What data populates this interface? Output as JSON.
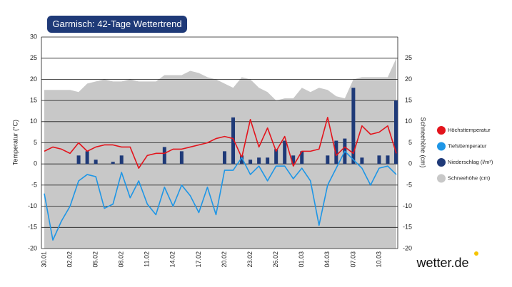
{
  "chart_data": {
    "type": "combo",
    "title": "Garmisch: 42-Tage Wettertrend",
    "ylabel": "Temperatur (°C)",
    "y2label": "Schneehöhe (cm)",
    "logo": "wetter.de",
    "categories": [
      "30.01",
      null,
      null,
      "02.02",
      null,
      null,
      "05.02",
      null,
      null,
      "08.02",
      null,
      null,
      "11.02",
      null,
      null,
      "14.02",
      null,
      null,
      "17.02",
      null,
      null,
      "20.02",
      null,
      null,
      "23.02",
      null,
      null,
      "26.02",
      null,
      null,
      "01.03",
      null,
      null,
      "04.03",
      null,
      null,
      "07.03",
      null,
      null,
      "10.03",
      null,
      null
    ],
    "series": [
      {
        "name": "Höchsttemperatur",
        "type": "line",
        "color": "#e3141c",
        "values": [
          3,
          4,
          3.5,
          2.5,
          5,
          3,
          4,
          4.5,
          4.5,
          4,
          4,
          -1,
          2,
          2.5,
          2.5,
          3.5,
          3.5,
          4,
          4.5,
          5,
          6,
          6.5,
          6,
          1.5,
          10.5,
          4,
          8.5,
          3,
          6.5,
          -0.5,
          3,
          3,
          3.5,
          11,
          2,
          4,
          2.5,
          9,
          7,
          7.5,
          9,
          2.5
        ]
      },
      {
        "name": "Tiefsttemperatur",
        "type": "line",
        "color": "#1e96e6",
        "values": [
          -7,
          -18,
          -13.5,
          -10,
          -4,
          -2.5,
          -3,
          -10.5,
          -9.5,
          -2,
          -8,
          -4,
          -9.5,
          -12,
          -5.5,
          -10,
          -5,
          -7.5,
          -11.5,
          -5.5,
          -12,
          -1.5,
          -1.5,
          1.5,
          -2.5,
          -0.5,
          -4,
          -0.5,
          -0.5,
          -3.5,
          -1,
          -4,
          -14.5,
          -5,
          -1,
          3,
          1,
          -1,
          -5,
          -1,
          -0.5,
          -2.5
        ]
      },
      {
        "name": "Niederschlag (l/m²)",
        "type": "bar",
        "axis": "y2",
        "color": "#1f3a78",
        "values": [
          0,
          0,
          0,
          0,
          2,
          3,
          1,
          0,
          0.5,
          2,
          0,
          0,
          0,
          0,
          4,
          0,
          3,
          0,
          0,
          0,
          0,
          3,
          11,
          2,
          1,
          1.5,
          1.5,
          3.5,
          5.5,
          2,
          3,
          0,
          0,
          2,
          5.5,
          6,
          18,
          1.5,
          0,
          2,
          2,
          15
        ]
      },
      {
        "name": "Schneehöhe (cm)",
        "type": "area",
        "axis": "y2",
        "color": "#c8c8c8",
        "values": [
          17.5,
          17.5,
          17.5,
          17.5,
          17,
          19,
          19.5,
          20,
          19.5,
          19.5,
          20,
          19.5,
          19.5,
          19.5,
          21,
          21,
          21,
          22,
          21.5,
          20.5,
          20,
          19,
          18,
          20.5,
          20,
          18,
          17,
          15,
          15.5,
          15.5,
          18,
          17,
          18,
          17.5,
          16,
          15.5,
          20,
          20.5,
          20.5,
          20.5,
          20.5,
          25
        ]
      }
    ],
    "ylim": [
      -20,
      30
    ],
    "yticks": [
      -20,
      -15,
      -10,
      -5,
      0,
      5,
      10,
      15,
      20,
      25,
      30
    ],
    "y2lim": [
      -20,
      30
    ],
    "y2ticks": [
      -20,
      -15,
      -10,
      -5,
      0,
      5,
      10,
      15,
      20,
      25
    ],
    "grid": true,
    "legend": "right"
  }
}
